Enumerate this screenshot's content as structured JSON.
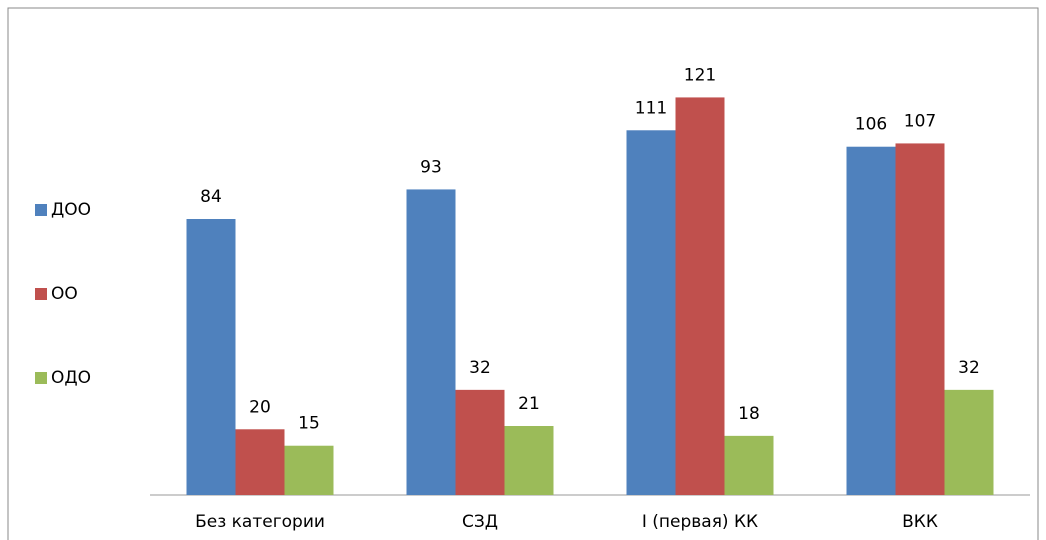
{
  "chart_data": {
    "type": "bar",
    "categories": [
      "Без категории",
      "СЗД",
      "I (первая) КК",
      "ВКК"
    ],
    "series": [
      {
        "name": "ДОО",
        "color": "#4f81bd",
        "values": [
          84,
          93,
          111,
          106
        ]
      },
      {
        "name": "ОО",
        "color": "#c0504d",
        "values": [
          20,
          32,
          121,
          107
        ]
      },
      {
        "name": "ОДО",
        "color": "#9bbb59",
        "values": [
          15,
          21,
          18,
          32
        ]
      }
    ],
    "ylim": [
      0,
      140
    ],
    "legend": "left"
  }
}
